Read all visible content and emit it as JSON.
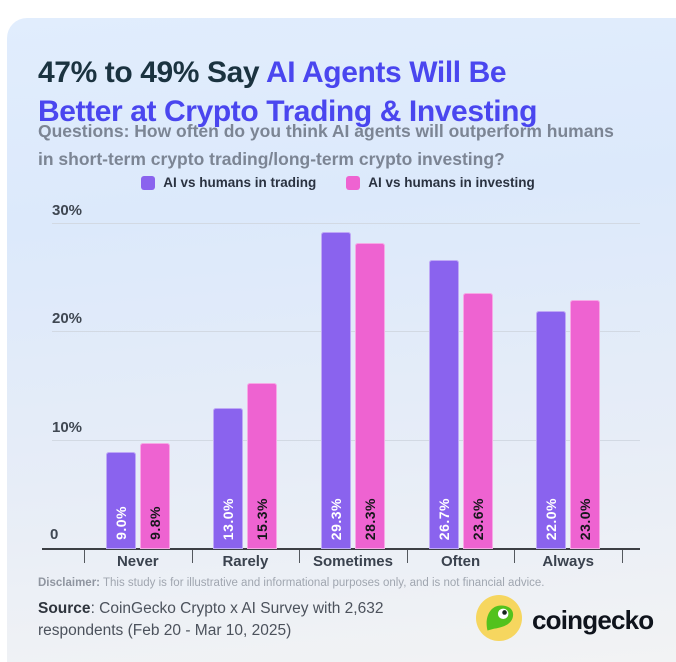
{
  "header": {
    "title_dark": "47% to 49% Say ",
    "title_blue_line1": "AI Agents Will Be",
    "title_blue_line2": "Better at Crypto Trading & Investing",
    "subtitle_line1": "Questions: How often do you think AI agents will outperform humans",
    "subtitle_line2": "in short-term crypto trading/long-term crypto investing?"
  },
  "legend": {
    "items": [
      {
        "label": "AI vs humans in trading",
        "color": "#8a63ee"
      },
      {
        "label": "AI vs humans in investing",
        "color": "#ee63d1"
      }
    ]
  },
  "chart_data": {
    "type": "bar",
    "title": "47% to 49% Say AI Agents Will Be Better at Crypto Trading & Investing",
    "categories": [
      "Never",
      "Rarely",
      "Sometimes",
      "Often",
      "Always"
    ],
    "series": [
      {
        "name": "AI vs humans in trading",
        "color": "#8a63ee",
        "label_color": "#ffffff",
        "values": [
          9.0,
          13.0,
          29.3,
          26.7,
          22.0
        ],
        "labels": [
          "9.0%",
          "13.0%",
          "29.3%",
          "26.7%",
          "22.0%"
        ]
      },
      {
        "name": "AI vs humans in investing",
        "color": "#ee63d1",
        "label_color": "#16171b",
        "values": [
          9.8,
          15.3,
          28.3,
          23.6,
          23.0
        ],
        "labels": [
          "9.8%",
          "15.3%",
          "28.3%",
          "23.6%",
          "23.0%"
        ]
      }
    ],
    "yticks": [
      {
        "value": 30,
        "label": "30%"
      },
      {
        "value": 20,
        "label": "20%"
      },
      {
        "value": 10,
        "label": "10%"
      }
    ],
    "zero_label": "0",
    "xlabel": "",
    "ylabel": "",
    "ylim": [
      0,
      32
    ],
    "grid": true,
    "legend_position": "top"
  },
  "footer": {
    "disclaimer_label": "Disclaimer:",
    "disclaimer_rest": " This study is for illustrative and informational purposes only, and is not financial advice.",
    "source_label": "Source",
    "source_rest": ": CoinGecko Crypto x AI Survey with 2,632",
    "source_line2": "respondents (Feb 20 - Mar 10, 2025)",
    "brand": "coingecko"
  },
  "colors": {
    "title_dark": "#1b3340",
    "title_blue": "#4a46ef",
    "bar_trading": "#8a63ee",
    "bar_investing": "#ee63d1",
    "background_top": "#dce9fb",
    "background_bottom": "#f2f3f4",
    "logo_circle": "#f6d65f",
    "logo_gecko": "#53c21d"
  }
}
